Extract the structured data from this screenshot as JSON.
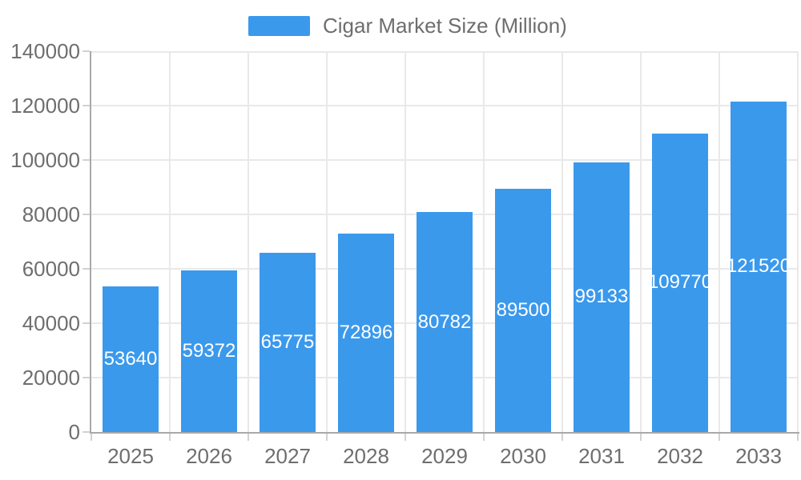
{
  "chart_data": {
    "type": "bar",
    "title": "Cigar Market Size (Million)",
    "categories": [
      "2025",
      "2026",
      "2027",
      "2028",
      "2029",
      "2030",
      "2031",
      "2032",
      "2033"
    ],
    "series": [
      {
        "name": "Cigar Market Size (Million)",
        "values": [
          53640,
          59372,
          65775,
          72896,
          80782,
          89500,
          99133,
          109770,
          121520
        ]
      }
    ],
    "xlabel": "",
    "ylabel": "",
    "ylim": [
      0,
      140000
    ],
    "y_ticks": [
      0,
      20000,
      40000,
      60000,
      80000,
      100000,
      120000,
      140000
    ],
    "grid": true,
    "legend_position": "top-center",
    "value_labels": "inside-center",
    "colors": {
      "bar": "#3B99EC",
      "axis_label": "#6e6e6e",
      "value_label": "#ffffff",
      "grid_line": "#e9e9e9",
      "axis_line": "#a9a9a9",
      "tick_line": "#d2d2d2",
      "background": "#ffffff"
    }
  }
}
